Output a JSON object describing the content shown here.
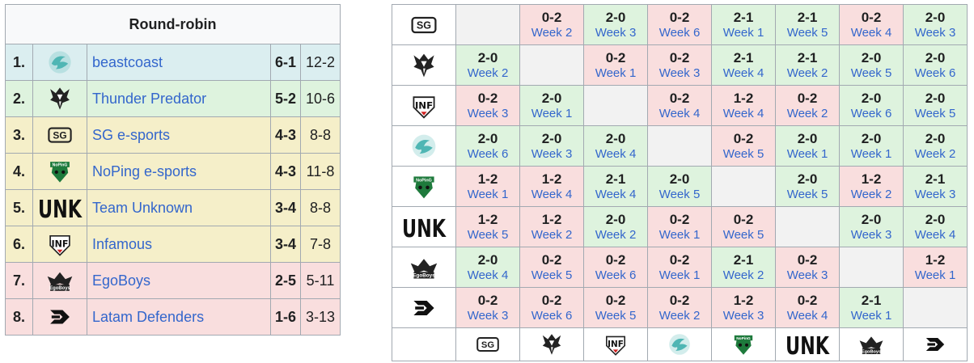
{
  "standings": {
    "title": "Round-robin",
    "rows": [
      {
        "rank": "1.",
        "team": "beastcoast",
        "logo": "beastcoast-logo",
        "wl": "6-1",
        "maps": "12-2",
        "color": "#dbeef0"
      },
      {
        "rank": "2.",
        "team": "Thunder Predator",
        "logo": "thunder-predator-logo",
        "wl": "5-2",
        "maps": "10-6",
        "color": "#def3de"
      },
      {
        "rank": "3.",
        "team": "SG e-sports",
        "logo": "sg-esports-logo",
        "wl": "4-3",
        "maps": "8-8",
        "color": "#f5efc9"
      },
      {
        "rank": "4.",
        "team": "NoPing e-sports",
        "logo": "noping-logo",
        "wl": "4-3",
        "maps": "11-8",
        "color": "#f5efc9"
      },
      {
        "rank": "5.",
        "team": "Team Unknown",
        "logo": "team-unknown-logo",
        "wl": "3-4",
        "maps": "8-8",
        "color": "#f5efc9"
      },
      {
        "rank": "6.",
        "team": "Infamous",
        "logo": "infamous-logo",
        "wl": "3-4",
        "maps": "7-8",
        "color": "#f5efc9"
      },
      {
        "rank": "7.",
        "team": "EgoBoys",
        "logo": "egoboys-logo",
        "wl": "2-5",
        "maps": "5-11",
        "color": "#f9dede"
      },
      {
        "rank": "8.",
        "team": "Latam Defenders",
        "logo": "latam-defenders-logo",
        "wl": "1-6",
        "maps": "3-13",
        "color": "#f9dede"
      }
    ]
  },
  "cross_table": {
    "team_order": [
      "SG e-sports",
      "Thunder Predator",
      "Infamous",
      "beastcoast",
      "NoPing e-sports",
      "Team Unknown",
      "EgoBoys",
      "Latam Defenders"
    ],
    "rows": [
      [
        null,
        {
          "score": "0-2",
          "week": "Week 2"
        },
        {
          "score": "2-0",
          "week": "Week 3"
        },
        {
          "score": "0-2",
          "week": "Week 6"
        },
        {
          "score": "2-1",
          "week": "Week 1"
        },
        {
          "score": "2-1",
          "week": "Week 5"
        },
        {
          "score": "0-2",
          "week": "Week 4"
        },
        {
          "score": "2-0",
          "week": "Week 3"
        }
      ],
      [
        {
          "score": "2-0",
          "week": "Week 2"
        },
        null,
        {
          "score": "0-2",
          "week": "Week 1"
        },
        {
          "score": "0-2",
          "week": "Week 3"
        },
        {
          "score": "2-1",
          "week": "Week 4"
        },
        {
          "score": "2-1",
          "week": "Week 2"
        },
        {
          "score": "2-0",
          "week": "Week 5"
        },
        {
          "score": "2-0",
          "week": "Week 6"
        }
      ],
      [
        {
          "score": "0-2",
          "week": "Week 3"
        },
        {
          "score": "2-0",
          "week": "Week 1"
        },
        null,
        {
          "score": "0-2",
          "week": "Week 4"
        },
        {
          "score": "1-2",
          "week": "Week 4"
        },
        {
          "score": "0-2",
          "week": "Week 2"
        },
        {
          "score": "2-0",
          "week": "Week 6"
        },
        {
          "score": "2-0",
          "week": "Week 5"
        }
      ],
      [
        {
          "score": "2-0",
          "week": "Week 6"
        },
        {
          "score": "2-0",
          "week": "Week 3"
        },
        {
          "score": "2-0",
          "week": "Week 4"
        },
        null,
        {
          "score": "0-2",
          "week": "Week 5"
        },
        {
          "score": "2-0",
          "week": "Week 1"
        },
        {
          "score": "2-0",
          "week": "Week 1"
        },
        {
          "score": "2-0",
          "week": "Week 2"
        }
      ],
      [
        {
          "score": "1-2",
          "week": "Week 1"
        },
        {
          "score": "1-2",
          "week": "Week 4"
        },
        {
          "score": "2-1",
          "week": "Week 4"
        },
        {
          "score": "2-0",
          "week": "Week 5"
        },
        null,
        {
          "score": "2-0",
          "week": "Week 5"
        },
        {
          "score": "1-2",
          "week": "Week 2"
        },
        {
          "score": "2-1",
          "week": "Week 3"
        }
      ],
      [
        {
          "score": "1-2",
          "week": "Week 5"
        },
        {
          "score": "1-2",
          "week": "Week 2"
        },
        {
          "score": "2-0",
          "week": "Week 2"
        },
        {
          "score": "0-2",
          "week": "Week 1"
        },
        {
          "score": "0-2",
          "week": "Week 5"
        },
        null,
        {
          "score": "2-0",
          "week": "Week 3"
        },
        {
          "score": "2-0",
          "week": "Week 4"
        }
      ],
      [
        {
          "score": "2-0",
          "week": "Week 4"
        },
        {
          "score": "0-2",
          "week": "Week 5"
        },
        {
          "score": "0-2",
          "week": "Week 6"
        },
        {
          "score": "0-2",
          "week": "Week 1"
        },
        {
          "score": "2-1",
          "week": "Week 2"
        },
        {
          "score": "0-2",
          "week": "Week 3"
        },
        null,
        {
          "score": "1-2",
          "week": "Week 1"
        }
      ],
      [
        {
          "score": "0-2",
          "week": "Week 3"
        },
        {
          "score": "0-2",
          "week": "Week 6"
        },
        {
          "score": "0-2",
          "week": "Week 5"
        },
        {
          "score": "0-2",
          "week": "Week 2"
        },
        {
          "score": "1-2",
          "week": "Week 3"
        },
        {
          "score": "0-2",
          "week": "Week 4"
        },
        {
          "score": "2-1",
          "week": "Week 1"
        },
        null
      ]
    ]
  },
  "logo_text": {
    "sg": "SG",
    "infamous": "INF",
    "noping": "NoPinG",
    "unknown": "UNK",
    "egoboys": "EgoBoys"
  },
  "colors": {
    "win": "#def3de",
    "loss": "#f9dede",
    "empty": "#f2f2f2",
    "link": "#3366cc",
    "beastcoast_teal": "#4fb6b4",
    "noping_green": "#1e7a3c"
  }
}
